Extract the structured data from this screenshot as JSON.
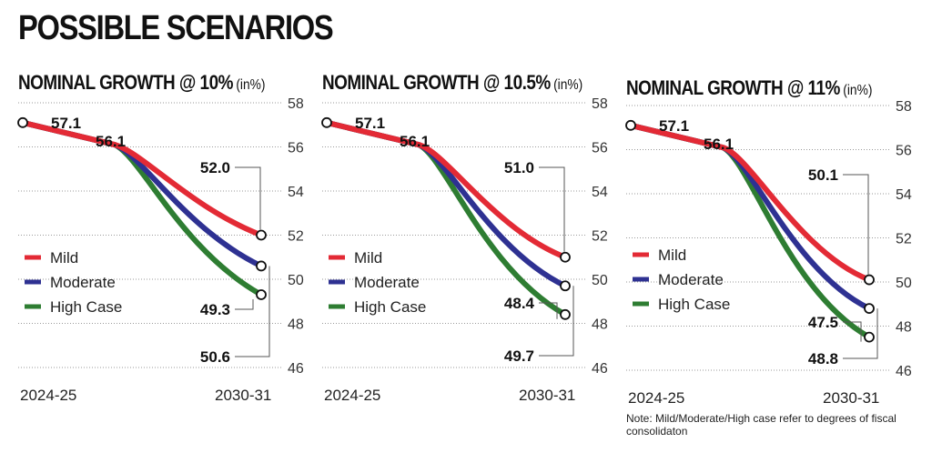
{
  "header": {
    "title": "POSSIBLE SCENARIOS"
  },
  "note": "Note: Mild/Moderate/High case refer to degrees of fiscal consolidaton",
  "colors": {
    "mild": "#e32a35",
    "moderate": "#2e3192",
    "high": "#2e7d32"
  },
  "chart_data": [
    {
      "type": "line",
      "title": "NOMINAL GROWTH @ 10%",
      "unit": "(in%)",
      "categories": [
        "2024-25",
        "2030-31"
      ],
      "yticks": [
        "58",
        "56",
        "54",
        "52",
        "50",
        "48",
        "46"
      ],
      "ylim": [
        46,
        58
      ],
      "start_value": 57.1,
      "mid_value": 56.1,
      "start_label": "57.1",
      "mid_label": "56.1",
      "legend": [
        "Mild",
        "Moderate",
        "High Case"
      ],
      "series": [
        {
          "name": "Mild",
          "values": [
            57.1,
            52.0
          ],
          "label": "52.0"
        },
        {
          "name": "Moderate",
          "values": [
            57.1,
            50.6
          ],
          "label": "50.6"
        },
        {
          "name": "High Case",
          "values": [
            57.1,
            49.3
          ],
          "label": "49.3"
        }
      ]
    },
    {
      "type": "line",
      "title": "NOMINAL GROWTH @ 10.5%",
      "unit": "(in%)",
      "categories": [
        "2024-25",
        "2030-31"
      ],
      "yticks": [
        "58",
        "56",
        "54",
        "52",
        "50",
        "48",
        "46"
      ],
      "ylim": [
        46,
        58
      ],
      "start_value": 57.1,
      "mid_value": 56.1,
      "start_label": "57.1",
      "mid_label": "56.1",
      "legend": [
        "Mild",
        "Moderate",
        "High Case"
      ],
      "series": [
        {
          "name": "Mild",
          "values": [
            57.1,
            51.0
          ],
          "label": "51.0"
        },
        {
          "name": "Moderate",
          "values": [
            57.1,
            49.7
          ],
          "label": "49.7"
        },
        {
          "name": "High Case",
          "values": [
            57.1,
            48.4
          ],
          "label": "48.4"
        }
      ]
    },
    {
      "type": "line",
      "title": "NOMINAL GROWTH @ 11%",
      "unit": "(in%)",
      "categories": [
        "2024-25",
        "2030-31"
      ],
      "yticks": [
        "58",
        "56",
        "54",
        "52",
        "50",
        "48",
        "46"
      ],
      "ylim": [
        46,
        58
      ],
      "start_value": 57.1,
      "mid_value": 56.1,
      "start_label": "57.1",
      "mid_label": "56.1",
      "legend": [
        "Mild",
        "Moderate",
        "High Case"
      ],
      "series": [
        {
          "name": "Mild",
          "values": [
            57.1,
            50.1
          ],
          "label": "50.1"
        },
        {
          "name": "Moderate",
          "values": [
            57.1,
            48.8
          ],
          "label": "48.8"
        },
        {
          "name": "High Case",
          "values": [
            57.1,
            47.5
          ],
          "label": "47.5"
        }
      ]
    }
  ]
}
